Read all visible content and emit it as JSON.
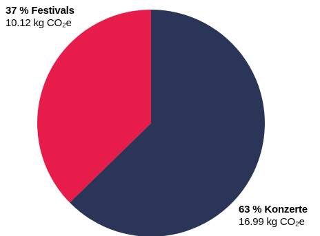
{
  "chart_data": {
    "type": "pie",
    "title": "",
    "slices": [
      {
        "category": "Konzerte",
        "percent_label": "63 % Konzerte",
        "value_label": "16.99 kg CO₂e",
        "value": 16.99,
        "percent": 63,
        "color": "#2b3558"
      },
      {
        "category": "Festivals",
        "percent_label": "37 % Festivals",
        "value_label": "10.12 kg CO₂e",
        "value": 10.12,
        "percent": 37,
        "color": "#e81c4a"
      }
    ],
    "unit": "kg CO₂e"
  }
}
